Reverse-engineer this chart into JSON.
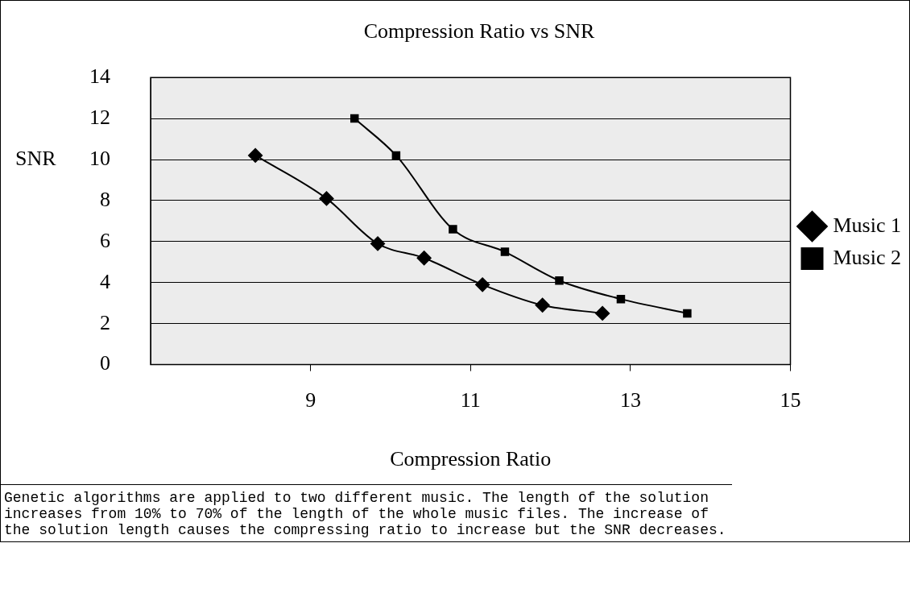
{
  "chart_data": {
    "type": "line",
    "title": "Compression Ratio vs SNR",
    "xlabel": "Compression Ratio",
    "ylabel": "SNR",
    "series": [
      {
        "name": "Music 1",
        "color": "#000000",
        "marker": "diamond",
        "x": [
          8.31,
          9.2,
          9.84,
          10.42,
          11.15,
          11.9,
          12.65
        ],
        "values": [
          10.2,
          8.1,
          5.9,
          5.2,
          3.9,
          2.9,
          2.5
        ]
      },
      {
        "name": "Music 2",
        "color": "#000000",
        "marker": "square",
        "x": [
          9.55,
          10.07,
          10.78,
          11.43,
          12.11,
          12.88,
          13.71
        ],
        "values": [
          12.0,
          10.2,
          6.6,
          5.5,
          4.1,
          3.2,
          2.5
        ]
      }
    ],
    "xlim": [
      7,
      15
    ],
    "xticks": [
      9,
      11,
      13,
      15
    ],
    "ylim": [
      0,
      14
    ],
    "yticks": [
      0,
      2,
      4,
      6,
      8,
      10,
      12,
      14
    ],
    "grid": "y",
    "legend": "right",
    "line_style": "solid",
    "annotations": [
      "Genetic algorithms are applied to two different music. The length of the solution increases from 10% to 70% of the length of the whole music files. The increase of the solution length causes the compressing ratio to increase but the SNR decreases."
    ]
  }
}
